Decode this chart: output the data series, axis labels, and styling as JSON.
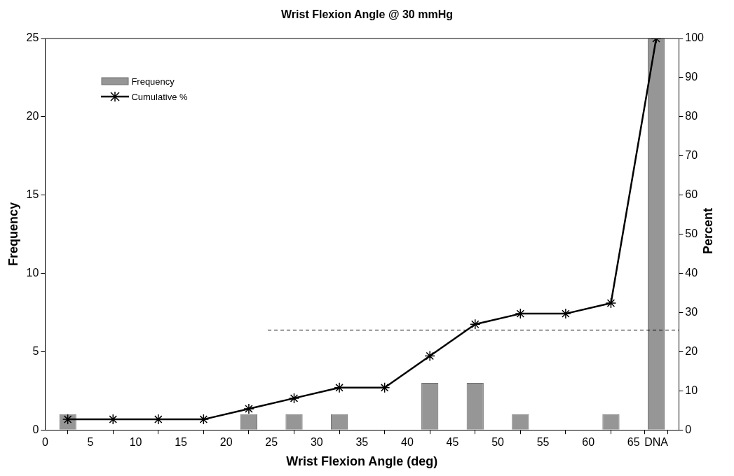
{
  "chart_data": {
    "type": "histogram",
    "title": "Wrist Flexion Angle @ 30 mmHg",
    "xlabel": "Wrist Flexion Angle (deg)",
    "ylabel": "Frequency",
    "y2label": "Percent",
    "bins": [
      0,
      5,
      10,
      15,
      20,
      25,
      30,
      35,
      40,
      45,
      50,
      55,
      60,
      65,
      70
    ],
    "series": [
      {
        "name": "Frequency",
        "color": "#969696",
        "values": [
          1,
          0,
          0,
          0,
          1,
          1,
          1,
          0,
          3,
          3,
          1,
          0,
          1,
          25
        ]
      },
      {
        "name": "Cumulative %",
        "type": "line",
        "axis": "y2",
        "color": "#000000",
        "marker": "cross",
        "x": [
          2.5,
          7.5,
          12.5,
          17.5,
          22.5,
          27.5,
          32.5,
          37.5,
          42.5,
          47.5,
          52.5,
          57.5,
          62.5,
          67.5
        ],
        "values": [
          2.7,
          2.7,
          2.7,
          2.7,
          5.4,
          8.1,
          10.8,
          10.8,
          18.9,
          27.0,
          29.7,
          29.7,
          32.4,
          100
        ]
      },
      {
        "type": "line",
        "axis": "y2",
        "color": "#000000",
        "marker": "none",
        "line_style": "dashed",
        "x": [
          24.6,
          70
        ],
        "values": [
          25.5,
          25.5
        ]
      }
    ],
    "xlim": [
      0,
      70
    ],
    "xticks": [
      0,
      5,
      10,
      15,
      20,
      25,
      30,
      35,
      40,
      45,
      50,
      55,
      60,
      65,
      {
        "value": 67.5,
        "label": "DNA"
      }
    ],
    "ylim": [
      0,
      25
    ],
    "yticks": [
      0,
      5,
      10,
      15,
      20,
      25
    ],
    "y2lim": [
      0,
      100
    ],
    "y2ticks": [
      0,
      10,
      20,
      30,
      40,
      50,
      60,
      70,
      80,
      90,
      100
    ],
    "grid": false,
    "legend": "top left"
  }
}
